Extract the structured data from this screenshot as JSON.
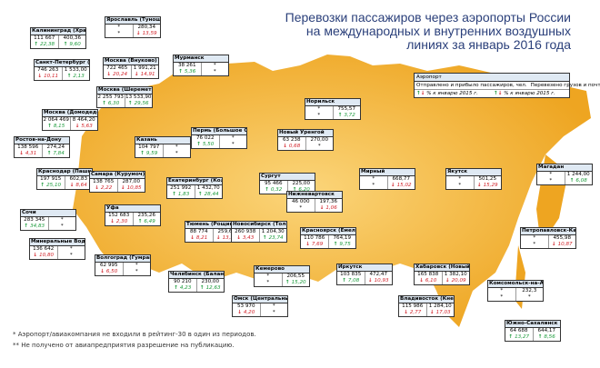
{
  "title": "Перевозки пассажиров через аэропорты России на международных и внутренних воздушных линиях за январь 2016 года",
  "legend": {
    "airport": "Аэропорт",
    "passengers": "Отправлено и прибыло пассажиров, чел.",
    "cargo": "Перевезено грузов и почты, т",
    "change": "% к январю 2015 г."
  },
  "footnotes": [
    "* Аэропорт/авиакомпания не входили в рейтинг-30 в один из периодов.",
    "** Не получено от авиапредприятия разрешение на публикацию."
  ],
  "airports": [
    {
      "name": "Калининград (Храброво)",
      "passengers": "111 667",
      "cargo": "400,36",
      "passengers_change": "22,38",
      "passengers_trend": "up",
      "cargo_change": "9,60",
      "cargo_trend": "up"
    },
    {
      "name": "Санкт-Петербург (Пулково)",
      "passengers": "746 263",
      "cargo": "1 533,00",
      "passengers_change": "10,11",
      "passengers_trend": "down",
      "cargo_change": "2,13",
      "cargo_trend": "up"
    },
    {
      "name": "Ярославль (Туношна)",
      "passengers": "*",
      "cargo": "280,34",
      "passengers_change": "*",
      "passengers_trend": "none",
      "cargo_change": "13,59",
      "cargo_trend": "down"
    },
    {
      "name": "Москва (Внуково)",
      "passengers": "722 465",
      "cargo": "1 991,21",
      "passengers_change": "20,24",
      "passengers_trend": "down",
      "cargo_change": "14,91",
      "cargo_trend": "down"
    },
    {
      "name": "Москва (Шереметьево)",
      "passengers": "2 255 793",
      "cargo": "13 533,90",
      "passengers_change": "6,30",
      "passengers_trend": "up",
      "cargo_change": "29,56",
      "cargo_trend": "up"
    },
    {
      "name": "Мурманск",
      "passengers": "38 261",
      "cargo": "*",
      "passengers_change": "5,36",
      "passengers_trend": "up",
      "cargo_change": "*",
      "cargo_trend": "none"
    },
    {
      "name": "Москва (Домодедово)",
      "passengers": "2 064 469",
      "cargo": "8 464,20",
      "passengers_change": "8,15",
      "passengers_trend": "up",
      "cargo_change": "5,63",
      "cargo_trend": "down"
    },
    {
      "name": "Ростов-на-Дону",
      "passengers": "138 596",
      "cargo": "274,24",
      "passengers_change": "4,31",
      "passengers_trend": "down",
      "cargo_change": "7,84",
      "cargo_trend": "up"
    },
    {
      "name": "Краснодар (Пашковский)",
      "passengers": "197 915",
      "cargo": "602,83",
      "passengers_change": "25,10",
      "passengers_trend": "up",
      "cargo_change": "8,64",
      "cargo_trend": "down"
    },
    {
      "name": "Сочи",
      "passengers": "283 345",
      "cargo": "*",
      "passengers_change": "34,83",
      "passengers_trend": "up",
      "cargo_change": "*",
      "cargo_trend": "none"
    },
    {
      "name": "Минеральные Воды",
      "passengers": "136 642",
      "cargo": "*",
      "passengers_change": "10,80",
      "passengers_trend": "down",
      "cargo_change": "*",
      "cargo_trend": "none"
    },
    {
      "name": "Самара (Курумоч)",
      "passengers": "138 765",
      "cargo": "287,00",
      "passengers_change": "2,22",
      "passengers_trend": "down",
      "cargo_change": "10,85",
      "cargo_trend": "down"
    },
    {
      "name": "Казань",
      "passengers": "104 797",
      "cargo": "*",
      "passengers_change": "9,59",
      "passengers_trend": "up",
      "cargo_change": "*",
      "cargo_trend": "none"
    },
    {
      "name": "Уфа",
      "passengers": "152 683",
      "cargo": "235,26",
      "passengers_change": "2,30",
      "passengers_trend": "down",
      "cargo_change": "6,49",
      "cargo_trend": "up"
    },
    {
      "name": "Волгоград (Гумрак)",
      "passengers": "62 995",
      "cargo": "*",
      "passengers_change": "6,50",
      "passengers_trend": "down",
      "cargo_change": "*",
      "cargo_trend": "none"
    },
    {
      "name": "Пермь (Большое Савино)",
      "passengers": "76 022",
      "cargo": "*",
      "passengers_change": "5,50",
      "passengers_trend": "up",
      "cargo_change": "*",
      "cargo_trend": "none"
    },
    {
      "name": "Екатеринбург (Кольцово)",
      "passengers": "251 992",
      "cargo": "1 432,70",
      "passengers_change": "1,83",
      "passengers_trend": "up",
      "cargo_change": "28,44",
      "cargo_trend": "up"
    },
    {
      "name": "Тюмень (Рощино)",
      "passengers": "88 774",
      "cargo": "259,60",
      "passengers_change": "8,21",
      "passengers_trend": "down",
      "cargo_change": "13,37",
      "cargo_trend": "down"
    },
    {
      "name": "Челябинск (Баландино)",
      "passengers": "90 210",
      "cargo": "230,00",
      "passengers_change": "4,23",
      "passengers_trend": "up",
      "cargo_change": "12,63",
      "cargo_trend": "up"
    },
    {
      "name": "Омск (Центральный)",
      "passengers": "53 970",
      "cargo": "*",
      "passengers_change": "4,20",
      "passengers_trend": "down",
      "cargo_change": "*",
      "cargo_trend": "none"
    },
    {
      "name": "Новосибирск (Толмачево)",
      "passengers": "260 938",
      "cargo": "1 204,30",
      "passengers_change": "3,43",
      "passengers_trend": "down",
      "cargo_change": "23,74",
      "cargo_trend": "up"
    },
    {
      "name": "Кемерово",
      "passengers": "*",
      "cargo": "206,55",
      "passengers_change": "*",
      "passengers_trend": "none",
      "cargo_change": "15,20",
      "cargo_trend": "up"
    },
    {
      "name": "Сургут",
      "passengers": "95 466",
      "cargo": "225,00",
      "passengers_change": "0,32",
      "passengers_trend": "up",
      "cargo_change": "6,20",
      "cargo_trend": "up"
    },
    {
      "name": "Новый Уренгой",
      "passengers": "63 238",
      "cargo": "270,00",
      "passengers_change": "0,68",
      "passengers_trend": "down",
      "cargo_change": "*",
      "cargo_trend": "none"
    },
    {
      "name": "Норильск",
      "passengers": "*",
      "cargo": "755,57",
      "passengers_change": "*",
      "passengers_trend": "none",
      "cargo_change": "3,72",
      "cargo_trend": "up"
    },
    {
      "name": "Нижневартовск",
      "passengers": "46 000",
      "cargo": "197,36",
      "passengers_change": "*",
      "passengers_trend": "none",
      "cargo_change": "1,06",
      "cargo_trend": "down"
    },
    {
      "name": "Красноярск (Емельяново)",
      "passengers": "110 786",
      "cargo": "764,19",
      "passengers_change": "7,69",
      "passengers_trend": "down",
      "cargo_change": "9,75",
      "cargo_trend": "up"
    },
    {
      "name": "Иркутск",
      "passengers": "103 835",
      "cargo": "472,47",
      "passengers_change": "7,08",
      "passengers_trend": "up",
      "cargo_change": "10,93",
      "cargo_trend": "down"
    },
    {
      "name": "Мирный",
      "passengers": "*",
      "cargo": "668,77",
      "passengers_change": "*",
      "passengers_trend": "none",
      "cargo_change": "15,02",
      "cargo_trend": "down"
    },
    {
      "name": "Якутск",
      "passengers": "*",
      "cargo": "501,25",
      "passengers_change": "*",
      "passengers_trend": "none",
      "cargo_change": "15,29",
      "cargo_trend": "down"
    },
    {
      "name": "Магадан",
      "passengers": "*",
      "cargo": "1 244,00",
      "passengers_change": "*",
      "passengers_trend": "none",
      "cargo_change": "6,08",
      "cargo_trend": "up"
    },
    {
      "name": "Петропавловск-Камчатский",
      "passengers": "*",
      "cargo": "455,98",
      "passengers_change": "*",
      "passengers_trend": "none",
      "cargo_change": "10,87",
      "cargo_trend": "down"
    },
    {
      "name": "Хабаровск (Новый)",
      "passengers": "165 838",
      "cargo": "1 382,10",
      "passengers_change": "6,10",
      "passengers_trend": "down",
      "cargo_change": "20,09",
      "cargo_trend": "down"
    },
    {
      "name": "Владивосток (Кневичи)",
      "passengers": "115 986",
      "cargo": "1 284,10",
      "passengers_change": "2,77",
      "passengers_trend": "down",
      "cargo_change": "17,03",
      "cargo_trend": "down"
    },
    {
      "name": "Южно-Сахалинск",
      "passengers": "64 688",
      "cargo": "644,17",
      "passengers_change": "13,27",
      "passengers_trend": "up",
      "cargo_change": "8,56",
      "cargo_trend": "up"
    },
    {
      "name": "Комсомольск-на-Амуре",
      "passengers": "*",
      "cargo": "232,3",
      "passengers_change": "*",
      "passengers_trend": "none",
      "cargo_change": "*",
      "cargo_trend": "none"
    }
  ]
}
